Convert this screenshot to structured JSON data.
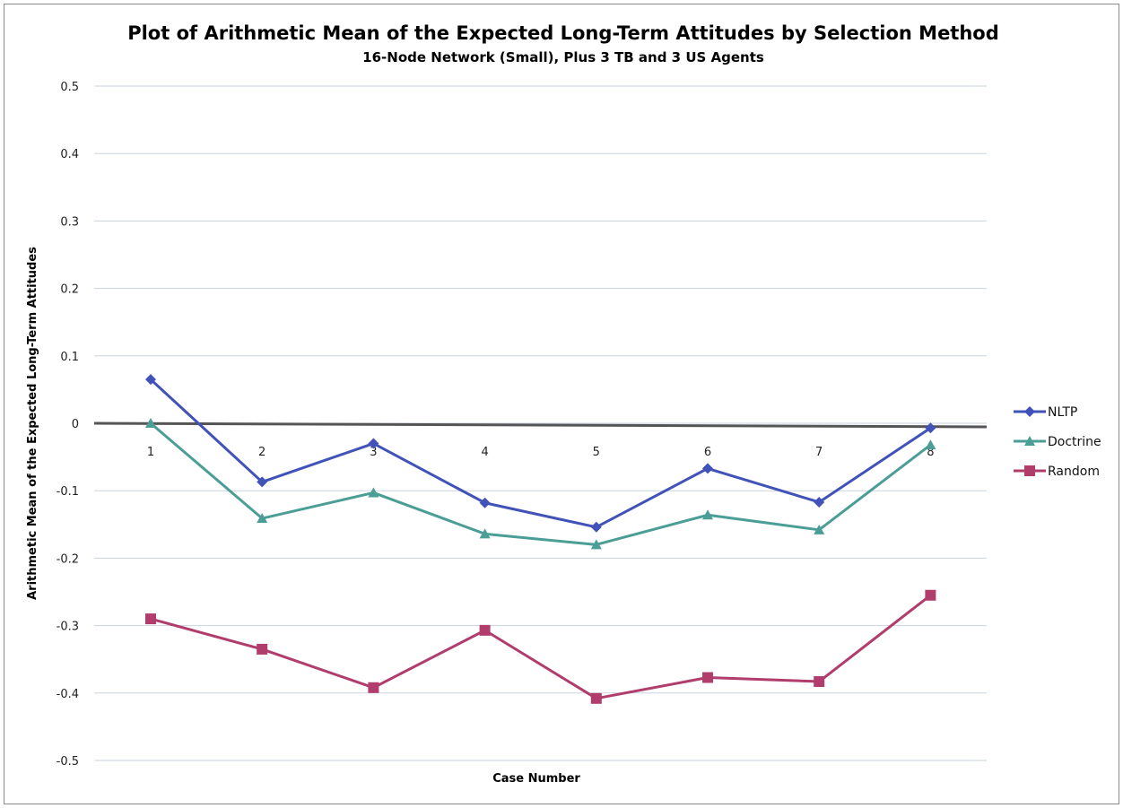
{
  "chart_data": {
    "type": "line",
    "title": "Plot of Arithmetic Mean of the Expected Long-Term Attitudes by Selection Method",
    "subtitle": "16-Node Network (Small), Plus 3 TB and 3 US Agents",
    "xlabel": "Case Number",
    "ylabel": "Arithmetic Mean of the Expected Long-Term Attitudes",
    "categories": [
      "1",
      "2",
      "3",
      "4",
      "5",
      "6",
      "7",
      "8"
    ],
    "ylim": [
      -0.5,
      0.5
    ],
    "yticks": [
      "0.5",
      "0.4",
      "0.3",
      "0.2",
      "0.1",
      "0",
      "-0.1",
      "-0.2",
      "-0.3",
      "-0.4",
      "-0.5"
    ],
    "grid": true,
    "legend_position": "right",
    "series": [
      {
        "name": "NLTP",
        "color": "#4152b8",
        "marker": "diamond",
        "values": [
          0.065,
          -0.087,
          -0.03,
          -0.118,
          -0.154,
          -0.067,
          -0.117,
          -0.007
        ]
      },
      {
        "name": "Doctrine",
        "color": "#4a9e96",
        "marker": "triangle",
        "values": [
          0.0,
          -0.141,
          -0.103,
          -0.164,
          -0.18,
          -0.136,
          -0.158,
          -0.032
        ]
      },
      {
        "name": "Random",
        "color": "#b03d6c",
        "marker": "square",
        "values": [
          -0.29,
          -0.335,
          -0.392,
          -0.307,
          -0.408,
          -0.377,
          -0.383,
          -0.255
        ]
      }
    ]
  }
}
